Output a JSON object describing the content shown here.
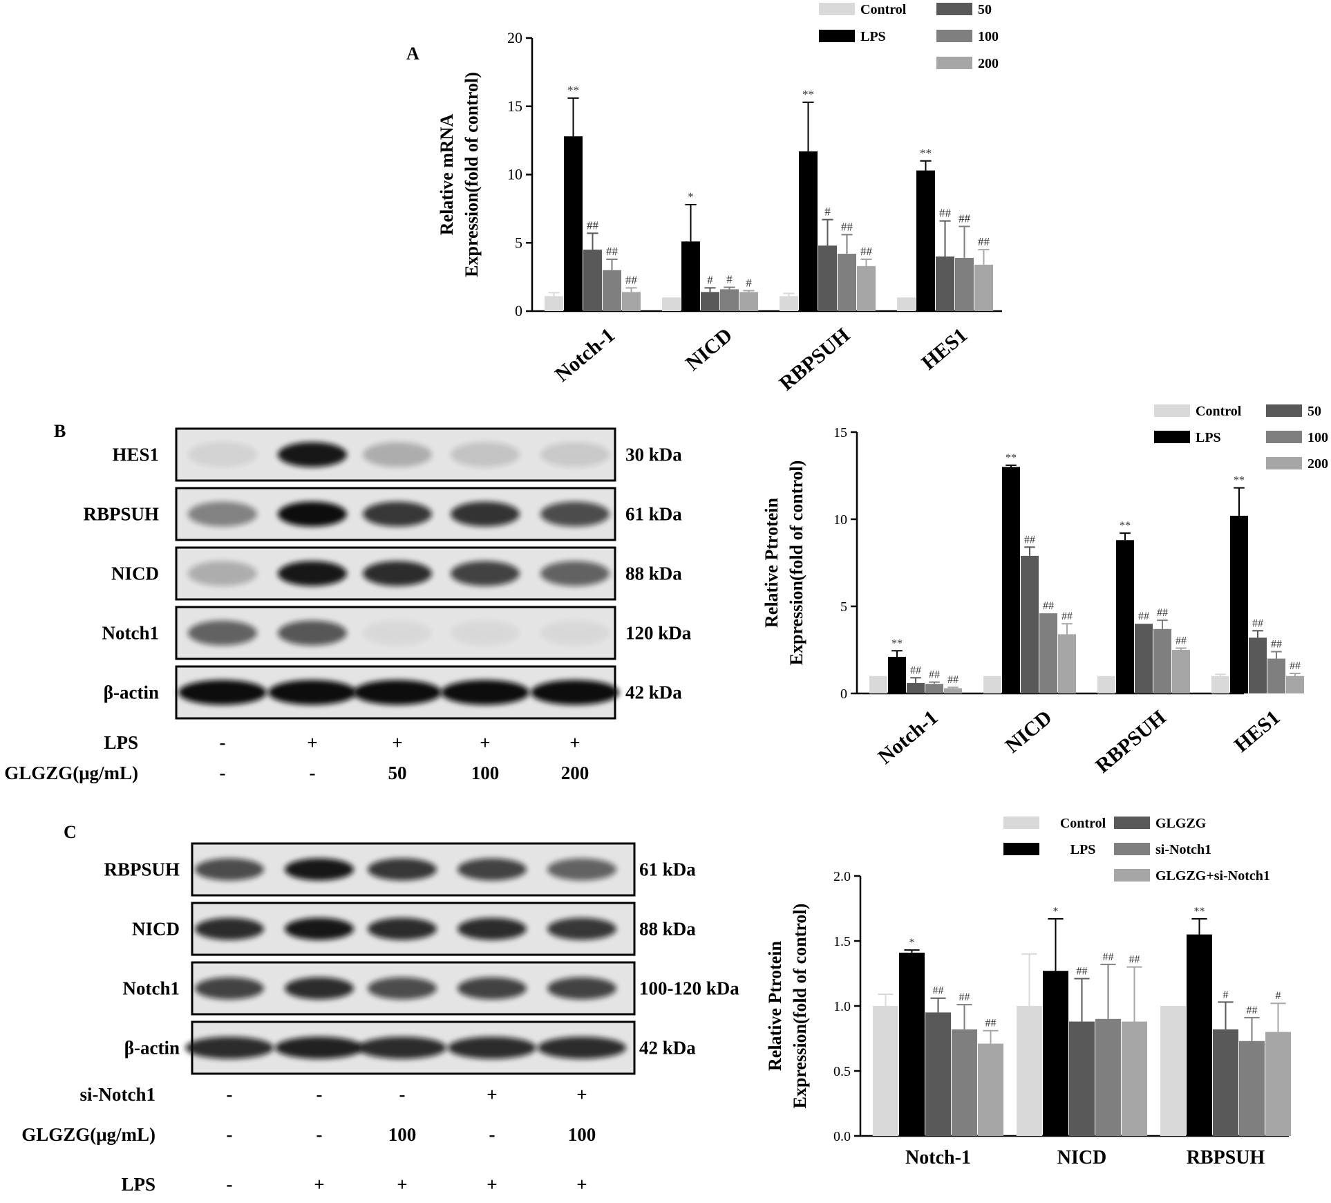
{
  "colors": {
    "control": "#d9d9d9",
    "lps": "#000000",
    "s50": "#595959",
    "s100": "#7f7f7f",
    "s200": "#a6a6a6",
    "axis": "#000000"
  },
  "panels": {
    "A": "A",
    "B": "B",
    "C": "C"
  },
  "chart_data": [
    {
      "id": "A",
      "type": "bar",
      "categories": [
        "Notch-1",
        "NICD",
        "RBPSUH",
        "HES1"
      ],
      "ylabel_line1": "Relative mRNA",
      "ylabel_line2": "Expression(fold of control)",
      "ylim": [
        0,
        20
      ],
      "yticks": [
        "0",
        "5",
        "10",
        "15",
        "20"
      ],
      "legend": [
        "Control",
        "LPS",
        "50",
        "100",
        "200"
      ],
      "series": [
        {
          "name": "Control",
          "values": [
            1.1,
            1.0,
            1.1,
            1.0
          ],
          "err": [
            0.25,
            0.0,
            0.2,
            0.0
          ],
          "sig": [
            "",
            "",
            "",
            ""
          ]
        },
        {
          "name": "LPS",
          "values": [
            12.8,
            5.1,
            11.7,
            10.3
          ],
          "err": [
            2.8,
            2.7,
            3.6,
            0.7
          ],
          "sig": [
            "**",
            "*",
            "**",
            "**"
          ]
        },
        {
          "name": "50",
          "values": [
            4.5,
            1.4,
            4.8,
            4.0
          ],
          "err": [
            1.2,
            0.3,
            1.9,
            2.6
          ],
          "sig": [
            "##",
            "#",
            "#",
            "##"
          ]
        },
        {
          "name": "100",
          "values": [
            3.0,
            1.6,
            4.2,
            3.9
          ],
          "err": [
            0.8,
            0.15,
            1.4,
            2.3
          ],
          "sig": [
            "##",
            "#",
            "##",
            "##"
          ]
        },
        {
          "name": "200",
          "values": [
            1.4,
            1.4,
            3.3,
            3.4
          ],
          "err": [
            0.3,
            0.1,
            0.5,
            1.1
          ],
          "sig": [
            "##",
            "#",
            "##",
            "##"
          ]
        }
      ]
    },
    {
      "id": "B",
      "type": "bar",
      "categories": [
        "Notch-1",
        "NICD",
        "RBPSUH",
        "HES1"
      ],
      "ylabel_line1": "Relative Ptrotein",
      "ylabel_line2": "Expression(fold of control)",
      "ylim": [
        0,
        15
      ],
      "yticks": [
        "0",
        "5",
        "10",
        "15"
      ],
      "legend": [
        "Control",
        "LPS",
        "50",
        "100",
        "200"
      ],
      "series": [
        {
          "name": "Control",
          "values": [
            1.0,
            1.0,
            1.0,
            1.0
          ],
          "err": [
            0.0,
            0.0,
            0.0,
            0.1
          ],
          "sig": [
            "",
            "",
            "",
            ""
          ]
        },
        {
          "name": "LPS",
          "values": [
            2.1,
            13.0,
            8.8,
            10.2
          ],
          "err": [
            0.35,
            0.1,
            0.4,
            1.6
          ],
          "sig": [
            "**",
            "**",
            "**",
            "**"
          ]
        },
        {
          "name": "50",
          "values": [
            0.6,
            7.9,
            4.0,
            3.2
          ],
          "err": [
            0.3,
            0.5,
            0.0,
            0.4
          ],
          "sig": [
            "##",
            "##",
            "##",
            "##"
          ]
        },
        {
          "name": "100",
          "values": [
            0.55,
            4.6,
            3.7,
            2.0
          ],
          "err": [
            0.1,
            0.0,
            0.5,
            0.4
          ],
          "sig": [
            "##",
            "##",
            "##",
            "##"
          ]
        },
        {
          "name": "200",
          "values": [
            0.3,
            3.4,
            2.5,
            1.0
          ],
          "err": [
            0.05,
            0.6,
            0.1,
            0.15
          ],
          "sig": [
            "##",
            "##",
            "##",
            "##"
          ]
        }
      ]
    },
    {
      "id": "C",
      "type": "bar",
      "categories": [
        "Notch-1",
        "NICD",
        "RBPSUH"
      ],
      "ylabel_line1": "Relative Ptrotein",
      "ylabel_line2": "Expression(fold of control)",
      "ylim": [
        0,
        2.0
      ],
      "yticks": [
        "0.0",
        "0.5",
        "1.0",
        "1.5",
        "2.0"
      ],
      "legend": [
        "Control",
        "LPS",
        "GLGZG",
        "si-Notch1",
        "GLGZG+si-Notch1"
      ],
      "series": [
        {
          "name": "Control",
          "values": [
            1.0,
            1.0,
            1.0
          ],
          "err": [
            0.09,
            0.4,
            0.0
          ],
          "sig": [
            "",
            "",
            ""
          ]
        },
        {
          "name": "LPS",
          "values": [
            1.41,
            1.27,
            1.55
          ],
          "err": [
            0.02,
            0.4,
            0.12
          ],
          "sig": [
            "*",
            "*",
            "**"
          ]
        },
        {
          "name": "GLGZG",
          "values": [
            0.95,
            0.88,
            0.82
          ],
          "err": [
            0.11,
            0.33,
            0.21
          ],
          "sig": [
            "##",
            "##",
            "#"
          ]
        },
        {
          "name": "si-Notch1",
          "values": [
            0.82,
            0.9,
            0.73
          ],
          "err": [
            0.19,
            0.42,
            0.18
          ],
          "sig": [
            "##",
            "##",
            "##"
          ]
        },
        {
          "name": "GLGZG+si-Notch1",
          "values": [
            0.71,
            0.88,
            0.8
          ],
          "err": [
            0.1,
            0.42,
            0.22
          ],
          "sig": [
            "##",
            "##",
            "#"
          ]
        }
      ]
    }
  ],
  "blotB": {
    "rows": [
      {
        "label": "HES1",
        "kda": "30 kDa"
      },
      {
        "label": "RBPSUH",
        "kda": "61 kDa"
      },
      {
        "label": "NICD",
        "kda": "88 kDa"
      },
      {
        "label": "Notch1",
        "kda": "120 kDa"
      },
      {
        "label": "β-actin",
        "kda": "42 kDa"
      }
    ],
    "intensity": [
      [
        0.08,
        0.95,
        0.25,
        0.15,
        0.12
      ],
      [
        0.45,
        1.0,
        0.8,
        0.82,
        0.7
      ],
      [
        0.25,
        0.95,
        0.85,
        0.75,
        0.6
      ],
      [
        0.6,
        0.65,
        0.05,
        0.05,
        0.05
      ],
      [
        1.0,
        1.0,
        1.0,
        1.0,
        1.0
      ]
    ],
    "treatments": [
      {
        "label": "LPS",
        "values": [
          "-",
          "+",
          "+",
          "+",
          "+"
        ]
      },
      {
        "label": "GLGZG(μg/mL)",
        "values": [
          "-",
          "-",
          "50",
          "100",
          "200"
        ]
      }
    ]
  },
  "blotC": {
    "rows": [
      {
        "label": "RBPSUH",
        "kda": "61 kDa"
      },
      {
        "label": "NICD",
        "kda": "88 kDa"
      },
      {
        "label": "Notch1",
        "kda": "100-120 kDa"
      },
      {
        "label": "β-actin",
        "kda": "42 kDa"
      }
    ],
    "intensity": [
      [
        0.7,
        0.95,
        0.8,
        0.75,
        0.6
      ],
      [
        0.85,
        0.95,
        0.85,
        0.85,
        0.8
      ],
      [
        0.75,
        0.85,
        0.7,
        0.75,
        0.75
      ],
      [
        0.85,
        0.9,
        0.85,
        0.85,
        0.85
      ]
    ],
    "treatments": [
      {
        "label": "si-Notch1",
        "values": [
          "-",
          "-",
          "-",
          "+",
          "+"
        ]
      },
      {
        "label": "GLGZG(μg/mL)",
        "values": [
          "-",
          "-",
          "100",
          "-",
          "100"
        ]
      },
      {
        "label": "LPS",
        "values": [
          "-",
          "+",
          "+",
          "+",
          "+"
        ]
      }
    ]
  }
}
